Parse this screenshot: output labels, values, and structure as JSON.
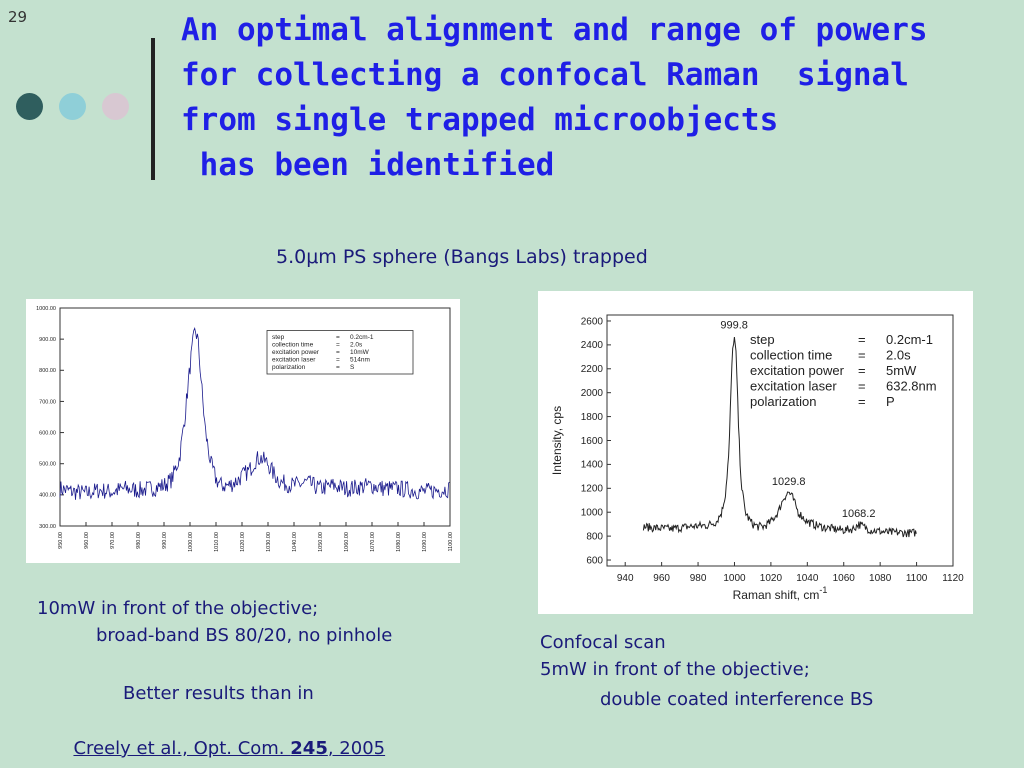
{
  "slide": {
    "number": "29",
    "title_lines": [
      "An optimal alignment and range of powers",
      "for collecting a confocal Raman  signal",
      "from single trapped microobjects",
      " has been identified"
    ],
    "subtitle": "5.0μm PS sphere (Bangs Labs) trapped",
    "dot_colors": [
      "#2f5e5e",
      "#8fcfd8",
      "#d8c8d2"
    ],
    "title_color": "#1f1fe6",
    "text_color": "#1a1a7a",
    "background_color": "#c4e1cf"
  },
  "left_caption": {
    "line1": "10mW in front of the objective;",
    "line2": "broad-band BS 80/20, no pinhole",
    "line3": "Better results than in",
    "ref_prefix": "Creely et al., Opt. Com. ",
    "ref_volume": "245",
    "ref_suffix": ", 2005"
  },
  "right_caption": {
    "line1": "Confocal scan",
    "line2": "5mW in front of the objective;",
    "line3": "double coated interference BS"
  },
  "chart_data": [
    {
      "type": "line",
      "xlabel": "",
      "ylabel": "",
      "xlim": [
        950,
        1100
      ],
      "ylim": [
        300,
        1000
      ],
      "x_ticks": [
        "950.00",
        "960.00",
        "970.00",
        "980.00",
        "990.00",
        "1000.00",
        "1010.00",
        "1020.00",
        "1030.00",
        "1040.00",
        "1050.00",
        "1060.00",
        "1070.00",
        "1080.00",
        "1090.00",
        "1100.00"
      ],
      "y_ticks": [
        "300.00",
        "400.00",
        "500.00",
        "600.00",
        "700.00",
        "800.00",
        "900.00",
        "1000.00"
      ],
      "series": [
        {
          "color": "#1a1a8c",
          "x": [
            950,
            955,
            960,
            965,
            970,
            975,
            980,
            985,
            990,
            993,
            996,
            998,
            1000,
            1001,
            1002,
            1003,
            1004,
            1005,
            1006,
            1008,
            1010,
            1012,
            1015,
            1018,
            1020,
            1023,
            1025,
            1027,
            1030,
            1032,
            1035,
            1040,
            1045,
            1050,
            1055,
            1060,
            1065,
            1070,
            1075,
            1080,
            1085,
            1090,
            1095,
            1100
          ],
          "y": [
            420,
            410,
            405,
            415,
            410,
            420,
            415,
            420,
            430,
            450,
            520,
            650,
            810,
            880,
            930,
            900,
            800,
            690,
            600,
            500,
            450,
            430,
            430,
            445,
            460,
            480,
            510,
            520,
            500,
            470,
            440,
            430,
            440,
            420,
            430,
            420,
            425,
            430,
            420,
            420,
            415,
            410,
            415,
            420
          ]
        }
      ],
      "legend": {
        "labels": [
          "step",
          "collection time",
          "excitation power",
          "excitation laser",
          "polarization"
        ],
        "values": [
          "0.2cm-1",
          "2.0s",
          "10mW",
          "514nm",
          "S"
        ],
        "sep": "="
      }
    },
    {
      "type": "line",
      "xlabel": "Raman shift, cm",
      "xlabel_sup": "-1",
      "ylabel": "Intensity, cps",
      "xlim": [
        930,
        1120
      ],
      "ylim": [
        550,
        2650
      ],
      "x_ticks": [
        940,
        960,
        980,
        1000,
        1020,
        1040,
        1060,
        1080,
        1100,
        1120
      ],
      "y_ticks": [
        600,
        800,
        1000,
        1200,
        1400,
        1600,
        1800,
        2000,
        2200,
        2400,
        2600
      ],
      "series": [
        {
          "color": "#222222",
          "x": [
            950,
            955,
            960,
            965,
            970,
            975,
            980,
            985,
            990,
            993,
            995,
            997,
            998,
            999,
            999.8,
            1001,
            1002,
            1003,
            1004,
            1006,
            1008,
            1010,
            1013,
            1016,
            1020,
            1024,
            1027,
            1029.8,
            1032,
            1035,
            1040,
            1045,
            1050,
            1055,
            1060,
            1065,
            1068.2,
            1072,
            1075,
            1080,
            1085,
            1090,
            1095,
            1100
          ],
          "y": [
            880,
            870,
            865,
            860,
            870,
            880,
            885,
            890,
            920,
            1000,
            1150,
            1500,
            2000,
            2350,
            2480,
            2300,
            1800,
            1450,
            1200,
            1000,
            940,
            900,
            880,
            880,
            920,
            1000,
            1120,
            1170,
            1120,
            1000,
            920,
            890,
            870,
            860,
            850,
            860,
            900,
            870,
            850,
            840,
            830,
            830,
            825,
            830
          ]
        }
      ],
      "annotations": [
        {
          "x": 999.8,
          "y": 2480,
          "text": "999.8"
        },
        {
          "x": 1029.8,
          "y": 1170,
          "text": "1029.8"
        },
        {
          "x": 1068.2,
          "y": 900,
          "text": "1068.2"
        }
      ],
      "legend": {
        "labels": [
          "step",
          "collection time",
          "excitation power",
          "excitation laser",
          "polarization"
        ],
        "values": [
          "0.2cm-1",
          "2.0s",
          "5mW",
          "632.8nm",
          "P"
        ],
        "sep": "="
      }
    }
  ]
}
